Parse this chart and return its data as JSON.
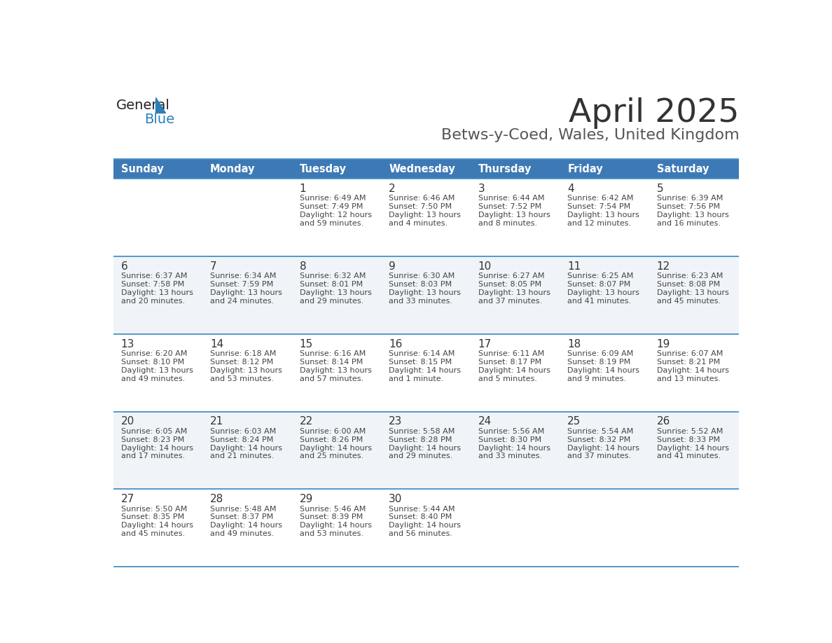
{
  "title": "April 2025",
  "subtitle": "Betws-y-Coed, Wales, United Kingdom",
  "days_of_week": [
    "Sunday",
    "Monday",
    "Tuesday",
    "Wednesday",
    "Thursday",
    "Friday",
    "Saturday"
  ],
  "header_bg": "#3D7AB5",
  "header_text": "#FFFFFF",
  "row_bg_odd": "#FFFFFF",
  "row_bg_even": "#F0F4F8",
  "day_number_color": "#333333",
  "cell_text_color": "#444444",
  "grid_line_color": "#4A90C4",
  "title_color": "#333333",
  "subtitle_color": "#555555",
  "logo_general_color": "#222222",
  "logo_blue_color": "#2980B9",
  "weeks": [
    [
      {
        "day": null,
        "data": null
      },
      {
        "day": null,
        "data": null
      },
      {
        "day": 1,
        "data": {
          "sunrise": "6:49 AM",
          "sunset": "7:49 PM",
          "daylight_hours": 12,
          "daylight_minutes": 59
        }
      },
      {
        "day": 2,
        "data": {
          "sunrise": "6:46 AM",
          "sunset": "7:50 PM",
          "daylight_hours": 13,
          "daylight_minutes": 4
        }
      },
      {
        "day": 3,
        "data": {
          "sunrise": "6:44 AM",
          "sunset": "7:52 PM",
          "daylight_hours": 13,
          "daylight_minutes": 8
        }
      },
      {
        "day": 4,
        "data": {
          "sunrise": "6:42 AM",
          "sunset": "7:54 PM",
          "daylight_hours": 13,
          "daylight_minutes": 12
        }
      },
      {
        "day": 5,
        "data": {
          "sunrise": "6:39 AM",
          "sunset": "7:56 PM",
          "daylight_hours": 13,
          "daylight_minutes": 16
        }
      }
    ],
    [
      {
        "day": 6,
        "data": {
          "sunrise": "6:37 AM",
          "sunset": "7:58 PM",
          "daylight_hours": 13,
          "daylight_minutes": 20
        }
      },
      {
        "day": 7,
        "data": {
          "sunrise": "6:34 AM",
          "sunset": "7:59 PM",
          "daylight_hours": 13,
          "daylight_minutes": 24
        }
      },
      {
        "day": 8,
        "data": {
          "sunrise": "6:32 AM",
          "sunset": "8:01 PM",
          "daylight_hours": 13,
          "daylight_minutes": 29
        }
      },
      {
        "day": 9,
        "data": {
          "sunrise": "6:30 AM",
          "sunset": "8:03 PM",
          "daylight_hours": 13,
          "daylight_minutes": 33
        }
      },
      {
        "day": 10,
        "data": {
          "sunrise": "6:27 AM",
          "sunset": "8:05 PM",
          "daylight_hours": 13,
          "daylight_minutes": 37
        }
      },
      {
        "day": 11,
        "data": {
          "sunrise": "6:25 AM",
          "sunset": "8:07 PM",
          "daylight_hours": 13,
          "daylight_minutes": 41
        }
      },
      {
        "day": 12,
        "data": {
          "sunrise": "6:23 AM",
          "sunset": "8:08 PM",
          "daylight_hours": 13,
          "daylight_minutes": 45
        }
      }
    ],
    [
      {
        "day": 13,
        "data": {
          "sunrise": "6:20 AM",
          "sunset": "8:10 PM",
          "daylight_hours": 13,
          "daylight_minutes": 49
        }
      },
      {
        "day": 14,
        "data": {
          "sunrise": "6:18 AM",
          "sunset": "8:12 PM",
          "daylight_hours": 13,
          "daylight_minutes": 53
        }
      },
      {
        "day": 15,
        "data": {
          "sunrise": "6:16 AM",
          "sunset": "8:14 PM",
          "daylight_hours": 13,
          "daylight_minutes": 57
        }
      },
      {
        "day": 16,
        "data": {
          "sunrise": "6:14 AM",
          "sunset": "8:15 PM",
          "daylight_hours": 14,
          "daylight_minutes": 1
        }
      },
      {
        "day": 17,
        "data": {
          "sunrise": "6:11 AM",
          "sunset": "8:17 PM",
          "daylight_hours": 14,
          "daylight_minutes": 5
        }
      },
      {
        "day": 18,
        "data": {
          "sunrise": "6:09 AM",
          "sunset": "8:19 PM",
          "daylight_hours": 14,
          "daylight_minutes": 9
        }
      },
      {
        "day": 19,
        "data": {
          "sunrise": "6:07 AM",
          "sunset": "8:21 PM",
          "daylight_hours": 14,
          "daylight_minutes": 13
        }
      }
    ],
    [
      {
        "day": 20,
        "data": {
          "sunrise": "6:05 AM",
          "sunset": "8:23 PM",
          "daylight_hours": 14,
          "daylight_minutes": 17
        }
      },
      {
        "day": 21,
        "data": {
          "sunrise": "6:03 AM",
          "sunset": "8:24 PM",
          "daylight_hours": 14,
          "daylight_minutes": 21
        }
      },
      {
        "day": 22,
        "data": {
          "sunrise": "6:00 AM",
          "sunset": "8:26 PM",
          "daylight_hours": 14,
          "daylight_minutes": 25
        }
      },
      {
        "day": 23,
        "data": {
          "sunrise": "5:58 AM",
          "sunset": "8:28 PM",
          "daylight_hours": 14,
          "daylight_minutes": 29
        }
      },
      {
        "day": 24,
        "data": {
          "sunrise": "5:56 AM",
          "sunset": "8:30 PM",
          "daylight_hours": 14,
          "daylight_minutes": 33
        }
      },
      {
        "day": 25,
        "data": {
          "sunrise": "5:54 AM",
          "sunset": "8:32 PM",
          "daylight_hours": 14,
          "daylight_minutes": 37
        }
      },
      {
        "day": 26,
        "data": {
          "sunrise": "5:52 AM",
          "sunset": "8:33 PM",
          "daylight_hours": 14,
          "daylight_minutes": 41
        }
      }
    ],
    [
      {
        "day": 27,
        "data": {
          "sunrise": "5:50 AM",
          "sunset": "8:35 PM",
          "daylight_hours": 14,
          "daylight_minutes": 45
        }
      },
      {
        "day": 28,
        "data": {
          "sunrise": "5:48 AM",
          "sunset": "8:37 PM",
          "daylight_hours": 14,
          "daylight_minutes": 49
        }
      },
      {
        "day": 29,
        "data": {
          "sunrise": "5:46 AM",
          "sunset": "8:39 PM",
          "daylight_hours": 14,
          "daylight_minutes": 53
        }
      },
      {
        "day": 30,
        "data": {
          "sunrise": "5:44 AM",
          "sunset": "8:40 PM",
          "daylight_hours": 14,
          "daylight_minutes": 56
        }
      },
      {
        "day": null,
        "data": null
      },
      {
        "day": null,
        "data": null
      },
      {
        "day": null,
        "data": null
      }
    ]
  ]
}
